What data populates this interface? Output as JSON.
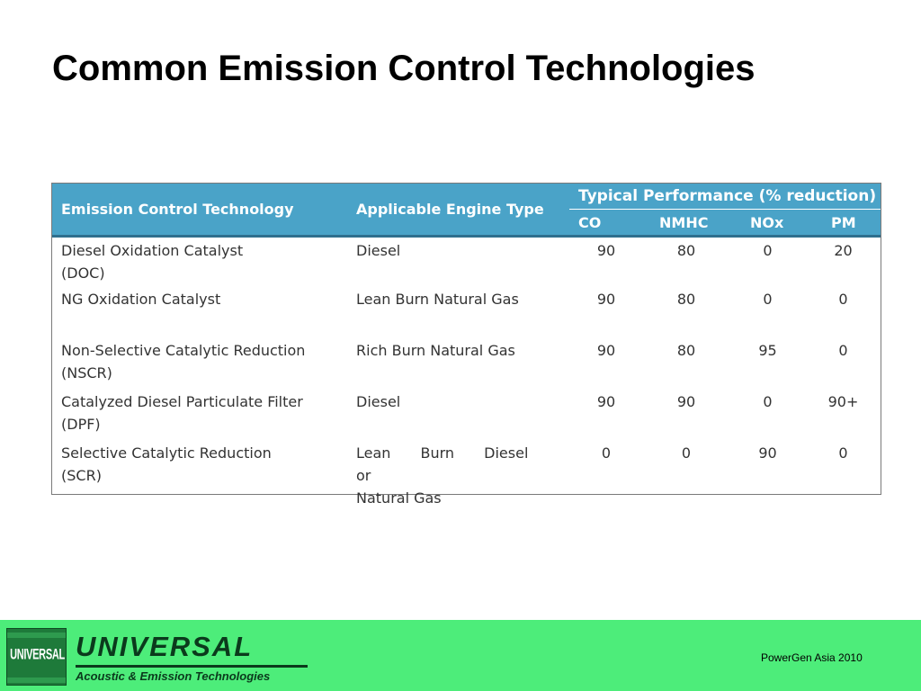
{
  "slide": {
    "title": "Common Emission Control Technologies"
  },
  "table": {
    "headers": {
      "technology": "Emission Control Technology",
      "engine_type": "Applicable Engine Type",
      "performance_group": "Typical Performance (% reduction)",
      "co": "CO",
      "nmhc": "NMHC",
      "nox": "NOx",
      "pm": "PM"
    },
    "rows": [
      {
        "tech_line1": "Diesel Oxidation Catalyst",
        "tech_line2": "(DOC)",
        "engine_line1": "Diesel",
        "engine_line2": "",
        "co": "90",
        "nmhc": "80",
        "nox": "0",
        "pm": "20"
      },
      {
        "tech_line1": "NG Oxidation Catalyst",
        "tech_line2": "",
        "engine_line1": "Lean Burn Natural Gas",
        "engine_line2": "",
        "co": "90",
        "nmhc": "80",
        "nox": "0",
        "pm": "0"
      },
      {
        "tech_line1": "Non-Selective Catalytic Reduction",
        "tech_line2": "(NSCR)",
        "engine_line1": "Rich Burn Natural Gas",
        "engine_line2": "",
        "co": "90",
        "nmhc": "80",
        "nox": "95",
        "pm": "0"
      },
      {
        "tech_line1": "Catalyzed Diesel Particulate Filter",
        "tech_line2": "(DPF)",
        "engine_line1": "Diesel",
        "engine_line2": "",
        "co": "90",
        "nmhc": "90",
        "nox": "0",
        "pm": "90+"
      },
      {
        "tech_line1": "Selective Catalytic Reduction",
        "tech_line2": "(SCR)",
        "engine_line1": "Lean Burn Diesel or",
        "engine_line2": "Natural Gas",
        "co": "0",
        "nmhc": "0",
        "nox": "90",
        "pm": "0"
      }
    ]
  },
  "footer": {
    "logo_text": "UNIVERSAL",
    "brand": "UNIVERSAL",
    "tagline": "Acoustic & Emission Technologies",
    "event": "PowerGen Asia 2010"
  },
  "colors": {
    "header_bg": "#4aa3c8",
    "footer_bg": "#4ded7a",
    "logo_bg": "#1e7a3a"
  }
}
